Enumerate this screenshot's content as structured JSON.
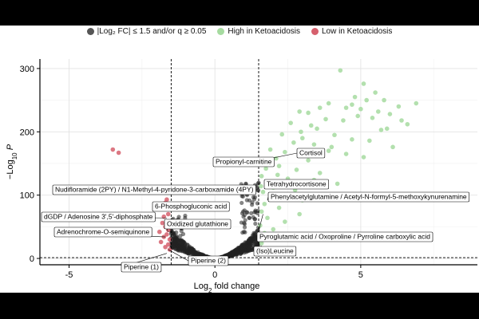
{
  "chart_data": {
    "type": "scatter",
    "title": "",
    "xlabel": "Log2 fold change",
    "ylabel": "−Log10 P",
    "xlim": [
      -6,
      9
    ],
    "ylim": [
      -10,
      315
    ],
    "xticks": [
      -5,
      0,
      5
    ],
    "yticks": [
      0,
      100,
      200,
      300
    ],
    "grid": true,
    "legend_position": "top",
    "thresholds": {
      "log2fc": [
        -1.5,
        1.5
      ],
      "neglog10p": 1.3
    },
    "legend": [
      {
        "name": "|Log₂ FC| ≤ 1.5 and/or q ≥ 0.05",
        "color": "#555555"
      },
      {
        "name": "High in Ketoacidosis",
        "color": "#a6dba0"
      },
      {
        "name": "Low in Ketoacidosis",
        "color": "#d6606d"
      }
    ],
    "series": [
      {
        "name": "High in Ketoacidosis",
        "color": "#a6dba0",
        "points": [
          [
            4.3,
            297
          ],
          [
            5.1,
            276
          ],
          [
            5.5,
            262
          ],
          [
            4.8,
            255
          ],
          [
            5.2,
            250
          ],
          [
            5.8,
            250
          ],
          [
            6.9,
            245
          ],
          [
            3.9,
            245
          ],
          [
            4.7,
            243
          ],
          [
            3.6,
            238
          ],
          [
            5.6,
            232
          ],
          [
            6.3,
            240
          ],
          [
            4.5,
            238
          ],
          [
            5.0,
            236
          ],
          [
            2.9,
            232
          ],
          [
            3.2,
            230
          ],
          [
            6.0,
            228
          ],
          [
            4.9,
            225
          ],
          [
            5.4,
            222
          ],
          [
            3.8,
            220
          ],
          [
            4.4,
            218
          ],
          [
            2.6,
            214
          ],
          [
            6.6,
            212
          ],
          [
            3.5,
            205
          ],
          [
            5.7,
            203
          ],
          [
            2.3,
            196
          ],
          [
            4.1,
            195
          ],
          [
            3.0,
            190
          ],
          [
            4.7,
            188
          ],
          [
            5.3,
            186
          ],
          [
            2.7,
            183
          ],
          [
            3.4,
            180
          ],
          [
            6.1,
            176
          ],
          [
            1.9,
            172
          ],
          [
            2.4,
            168
          ],
          [
            3.9,
            170
          ],
          [
            4.5,
            165
          ],
          [
            5.1,
            160
          ],
          [
            2.1,
            158
          ],
          [
            3.2,
            155
          ],
          [
            1.7,
            150
          ],
          [
            2.2,
            146
          ],
          [
            2.8,
            140
          ],
          [
            3.6,
            135
          ],
          [
            1.6,
            130
          ],
          [
            2.5,
            126
          ],
          [
            1.8,
            120
          ],
          [
            4.2,
            118
          ],
          [
            2.0,
            112
          ],
          [
            1.65,
            105
          ],
          [
            2.6,
            100
          ],
          [
            1.9,
            95
          ],
          [
            3.0,
            92
          ],
          [
            1.7,
            86
          ],
          [
            2.2,
            80
          ],
          [
            1.6,
            74
          ],
          [
            2.9,
            70
          ],
          [
            1.8,
            64
          ],
          [
            2.4,
            58
          ],
          [
            1.55,
            52
          ],
          [
            2.0,
            46
          ],
          [
            1.7,
            40
          ],
          [
            2.6,
            36
          ],
          [
            1.9,
            30
          ],
          [
            1.6,
            24
          ],
          [
            3.3,
            210
          ],
          [
            6.4,
            218
          ],
          [
            5.9,
            205
          ],
          [
            2.95,
            200
          ],
          [
            4.0,
            176
          ],
          [
            1.75,
            142
          ],
          [
            2.15,
            132
          ],
          [
            3.4,
            124
          ],
          [
            1.58,
            114
          ],
          [
            2.75,
            108
          ]
        ]
      },
      {
        "name": "Low in Ketoacidosis",
        "color": "#d6606d",
        "points": [
          [
            -3.5,
            172
          ],
          [
            -3.3,
            167
          ],
          [
            -1.65,
            93
          ],
          [
            -1.7,
            88
          ],
          [
            -1.6,
            70
          ],
          [
            -1.75,
            66
          ],
          [
            -1.8,
            56
          ],
          [
            -1.7,
            50
          ],
          [
            -1.6,
            45
          ],
          [
            -1.9,
            42
          ],
          [
            -1.65,
            38
          ],
          [
            -1.75,
            34
          ],
          [
            -1.55,
            30
          ],
          [
            -1.85,
            26
          ],
          [
            -1.6,
            22
          ],
          [
            -1.7,
            18
          ],
          [
            -1.55,
            14
          ]
        ]
      },
      {
        "name": "|Log₂ FC| ≤ 1.5 and/or q ≥ 0.05",
        "color": "#555555",
        "points": []
      }
    ],
    "annotations": [
      {
        "text": "Cortisol",
        "x": 1.7,
        "y": 156
      },
      {
        "text": "Propionyl-carnitine",
        "x": 1.6,
        "y": 146
      },
      {
        "text": "Tetrahydrocortisone",
        "x": 1.75,
        "y": 120
      },
      {
        "text": "Nudifloramide (2PY) / N1-Methyl-4-pyridone-3-carboxamide (4PY)",
        "x": -1.6,
        "y": 103
      },
      {
        "text": "Phenylacetylglutamine / Acetyl-N-formyl-5-methoxykynurenamine",
        "x": 1.8,
        "y": 92
      },
      {
        "text": "6-Phosphogluconic acid",
        "x": -1.55,
        "y": 86
      },
      {
        "text": "dGDP / Adenosine 3',5'-diphosphate",
        "x": -1.65,
        "y": 64
      },
      {
        "text": "Oxidized glutathione",
        "x": -1.6,
        "y": 42
      },
      {
        "text": "Pyroglutamic acid / Oxoproline / Pyrroline carboxylic acid",
        "x": 1.65,
        "y": 70
      },
      {
        "text": "Adrenochrome-O-semiquinone",
        "x": -1.7,
        "y": 34
      },
      {
        "text": "(Iso)Leucine",
        "x": 1.6,
        "y": 20
      },
      {
        "text": "Piperine (2)",
        "x": -1.6,
        "y": 14
      },
      {
        "text": "Piperine (1)",
        "x": -1.65,
        "y": 8
      }
    ]
  }
}
